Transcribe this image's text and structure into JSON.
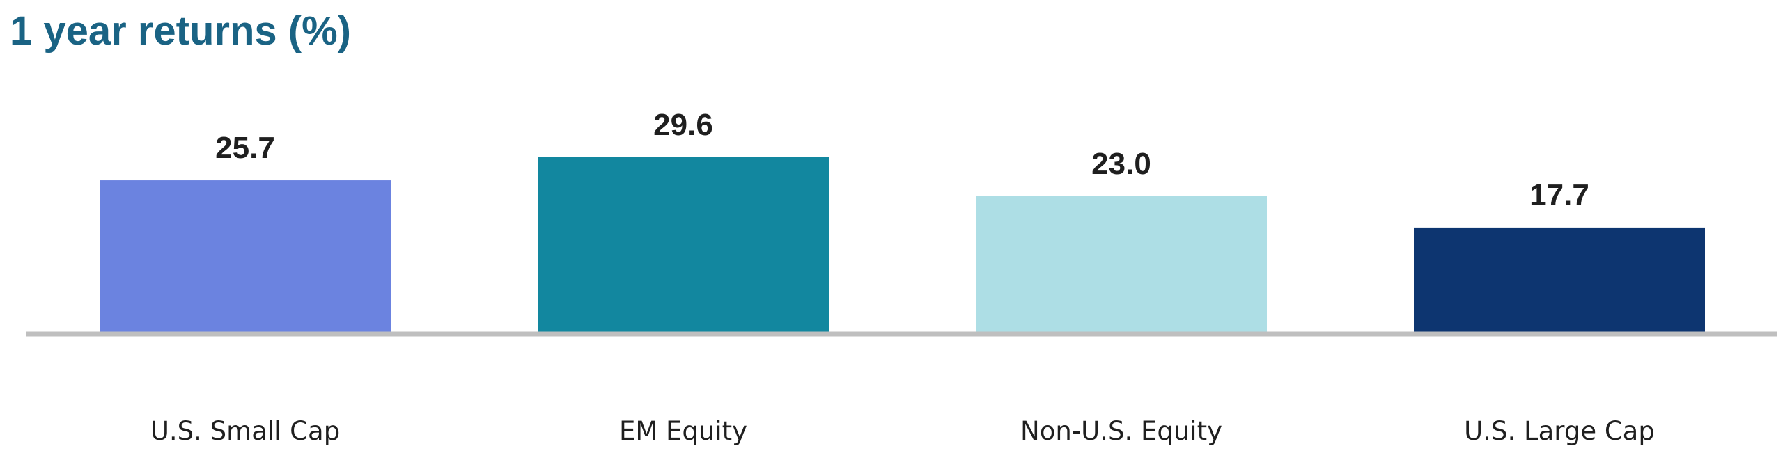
{
  "chart_data": {
    "type": "bar",
    "title": "1 year returns (%)",
    "xlabel": "",
    "ylabel": "",
    "categories": [
      "U.S. Small Cap",
      "EM Equity",
      "Non-U.S. Equity",
      "U.S. Large Cap"
    ],
    "values": [
      25.7,
      29.6,
      23.0,
      17.7
    ],
    "value_labels": [
      "25.7",
      "29.6",
      "23.0",
      "17.7"
    ],
    "colors": [
      "#6b83e0",
      "#12879f",
      "#addee5",
      "#0d3570"
    ],
    "baseline_color": "#bfbfbf",
    "ylim": [
      0,
      30
    ],
    "grid": false,
    "legend": "none"
  }
}
